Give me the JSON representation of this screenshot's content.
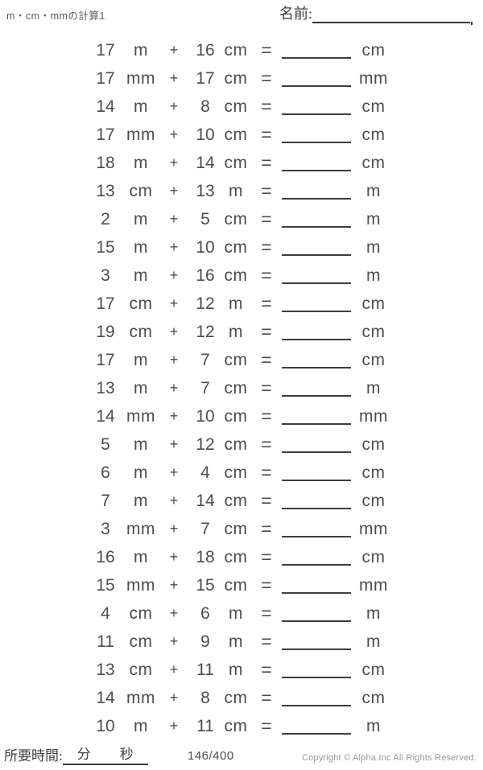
{
  "header": {
    "title": "m・cm・mmの計算1",
    "name_label": "名前:"
  },
  "symbols": {
    "plus": "+",
    "equals": "="
  },
  "problems": [
    {
      "a": "17",
      "a_unit": "m",
      "b": "16",
      "b_unit": "cm",
      "answer_unit": "cm"
    },
    {
      "a": "17",
      "a_unit": "mm",
      "b": "17",
      "b_unit": "cm",
      "answer_unit": "mm"
    },
    {
      "a": "14",
      "a_unit": "m",
      "b": "8",
      "b_unit": "cm",
      "answer_unit": "cm"
    },
    {
      "a": "17",
      "a_unit": "mm",
      "b": "10",
      "b_unit": "cm",
      "answer_unit": "cm"
    },
    {
      "a": "18",
      "a_unit": "m",
      "b": "14",
      "b_unit": "cm",
      "answer_unit": "cm"
    },
    {
      "a": "13",
      "a_unit": "cm",
      "b": "13",
      "b_unit": "m",
      "answer_unit": "m"
    },
    {
      "a": "2",
      "a_unit": "m",
      "b": "5",
      "b_unit": "cm",
      "answer_unit": "m"
    },
    {
      "a": "15",
      "a_unit": "m",
      "b": "10",
      "b_unit": "cm",
      "answer_unit": "m"
    },
    {
      "a": "3",
      "a_unit": "m",
      "b": "16",
      "b_unit": "cm",
      "answer_unit": "m"
    },
    {
      "a": "17",
      "a_unit": "cm",
      "b": "12",
      "b_unit": "m",
      "answer_unit": "cm"
    },
    {
      "a": "19",
      "a_unit": "cm",
      "b": "12",
      "b_unit": "m",
      "answer_unit": "cm"
    },
    {
      "a": "17",
      "a_unit": "m",
      "b": "7",
      "b_unit": "cm",
      "answer_unit": "cm"
    },
    {
      "a": "13",
      "a_unit": "m",
      "b": "7",
      "b_unit": "cm",
      "answer_unit": "m"
    },
    {
      "a": "14",
      "a_unit": "mm",
      "b": "10",
      "b_unit": "cm",
      "answer_unit": "mm"
    },
    {
      "a": "5",
      "a_unit": "m",
      "b": "12",
      "b_unit": "cm",
      "answer_unit": "cm"
    },
    {
      "a": "6",
      "a_unit": "m",
      "b": "4",
      "b_unit": "cm",
      "answer_unit": "cm"
    },
    {
      "a": "7",
      "a_unit": "m",
      "b": "14",
      "b_unit": "cm",
      "answer_unit": "cm"
    },
    {
      "a": "3",
      "a_unit": "mm",
      "b": "7",
      "b_unit": "cm",
      "answer_unit": "mm"
    },
    {
      "a": "16",
      "a_unit": "m",
      "b": "18",
      "b_unit": "cm",
      "answer_unit": "cm"
    },
    {
      "a": "15",
      "a_unit": "mm",
      "b": "15",
      "b_unit": "cm",
      "answer_unit": "mm"
    },
    {
      "a": "4",
      "a_unit": "cm",
      "b": "6",
      "b_unit": "m",
      "answer_unit": "m"
    },
    {
      "a": "11",
      "a_unit": "cm",
      "b": "9",
      "b_unit": "m",
      "answer_unit": "m"
    },
    {
      "a": "13",
      "a_unit": "cm",
      "b": "11",
      "b_unit": "m",
      "answer_unit": "cm"
    },
    {
      "a": "14",
      "a_unit": "mm",
      "b": "8",
      "b_unit": "cm",
      "answer_unit": "cm"
    },
    {
      "a": "10",
      "a_unit": "m",
      "b": "11",
      "b_unit": "cm",
      "answer_unit": "m"
    }
  ],
  "footer": {
    "time_label": "所要時間:",
    "minutes_label": "分",
    "seconds_label": "秒",
    "page_number": "146/400",
    "copyright": "Copyright © Alpha.Inc All Rights Reserved."
  },
  "colors": {
    "text": "#4d4d4d",
    "line": "#3d3d3d",
    "muted": "#979797"
  }
}
